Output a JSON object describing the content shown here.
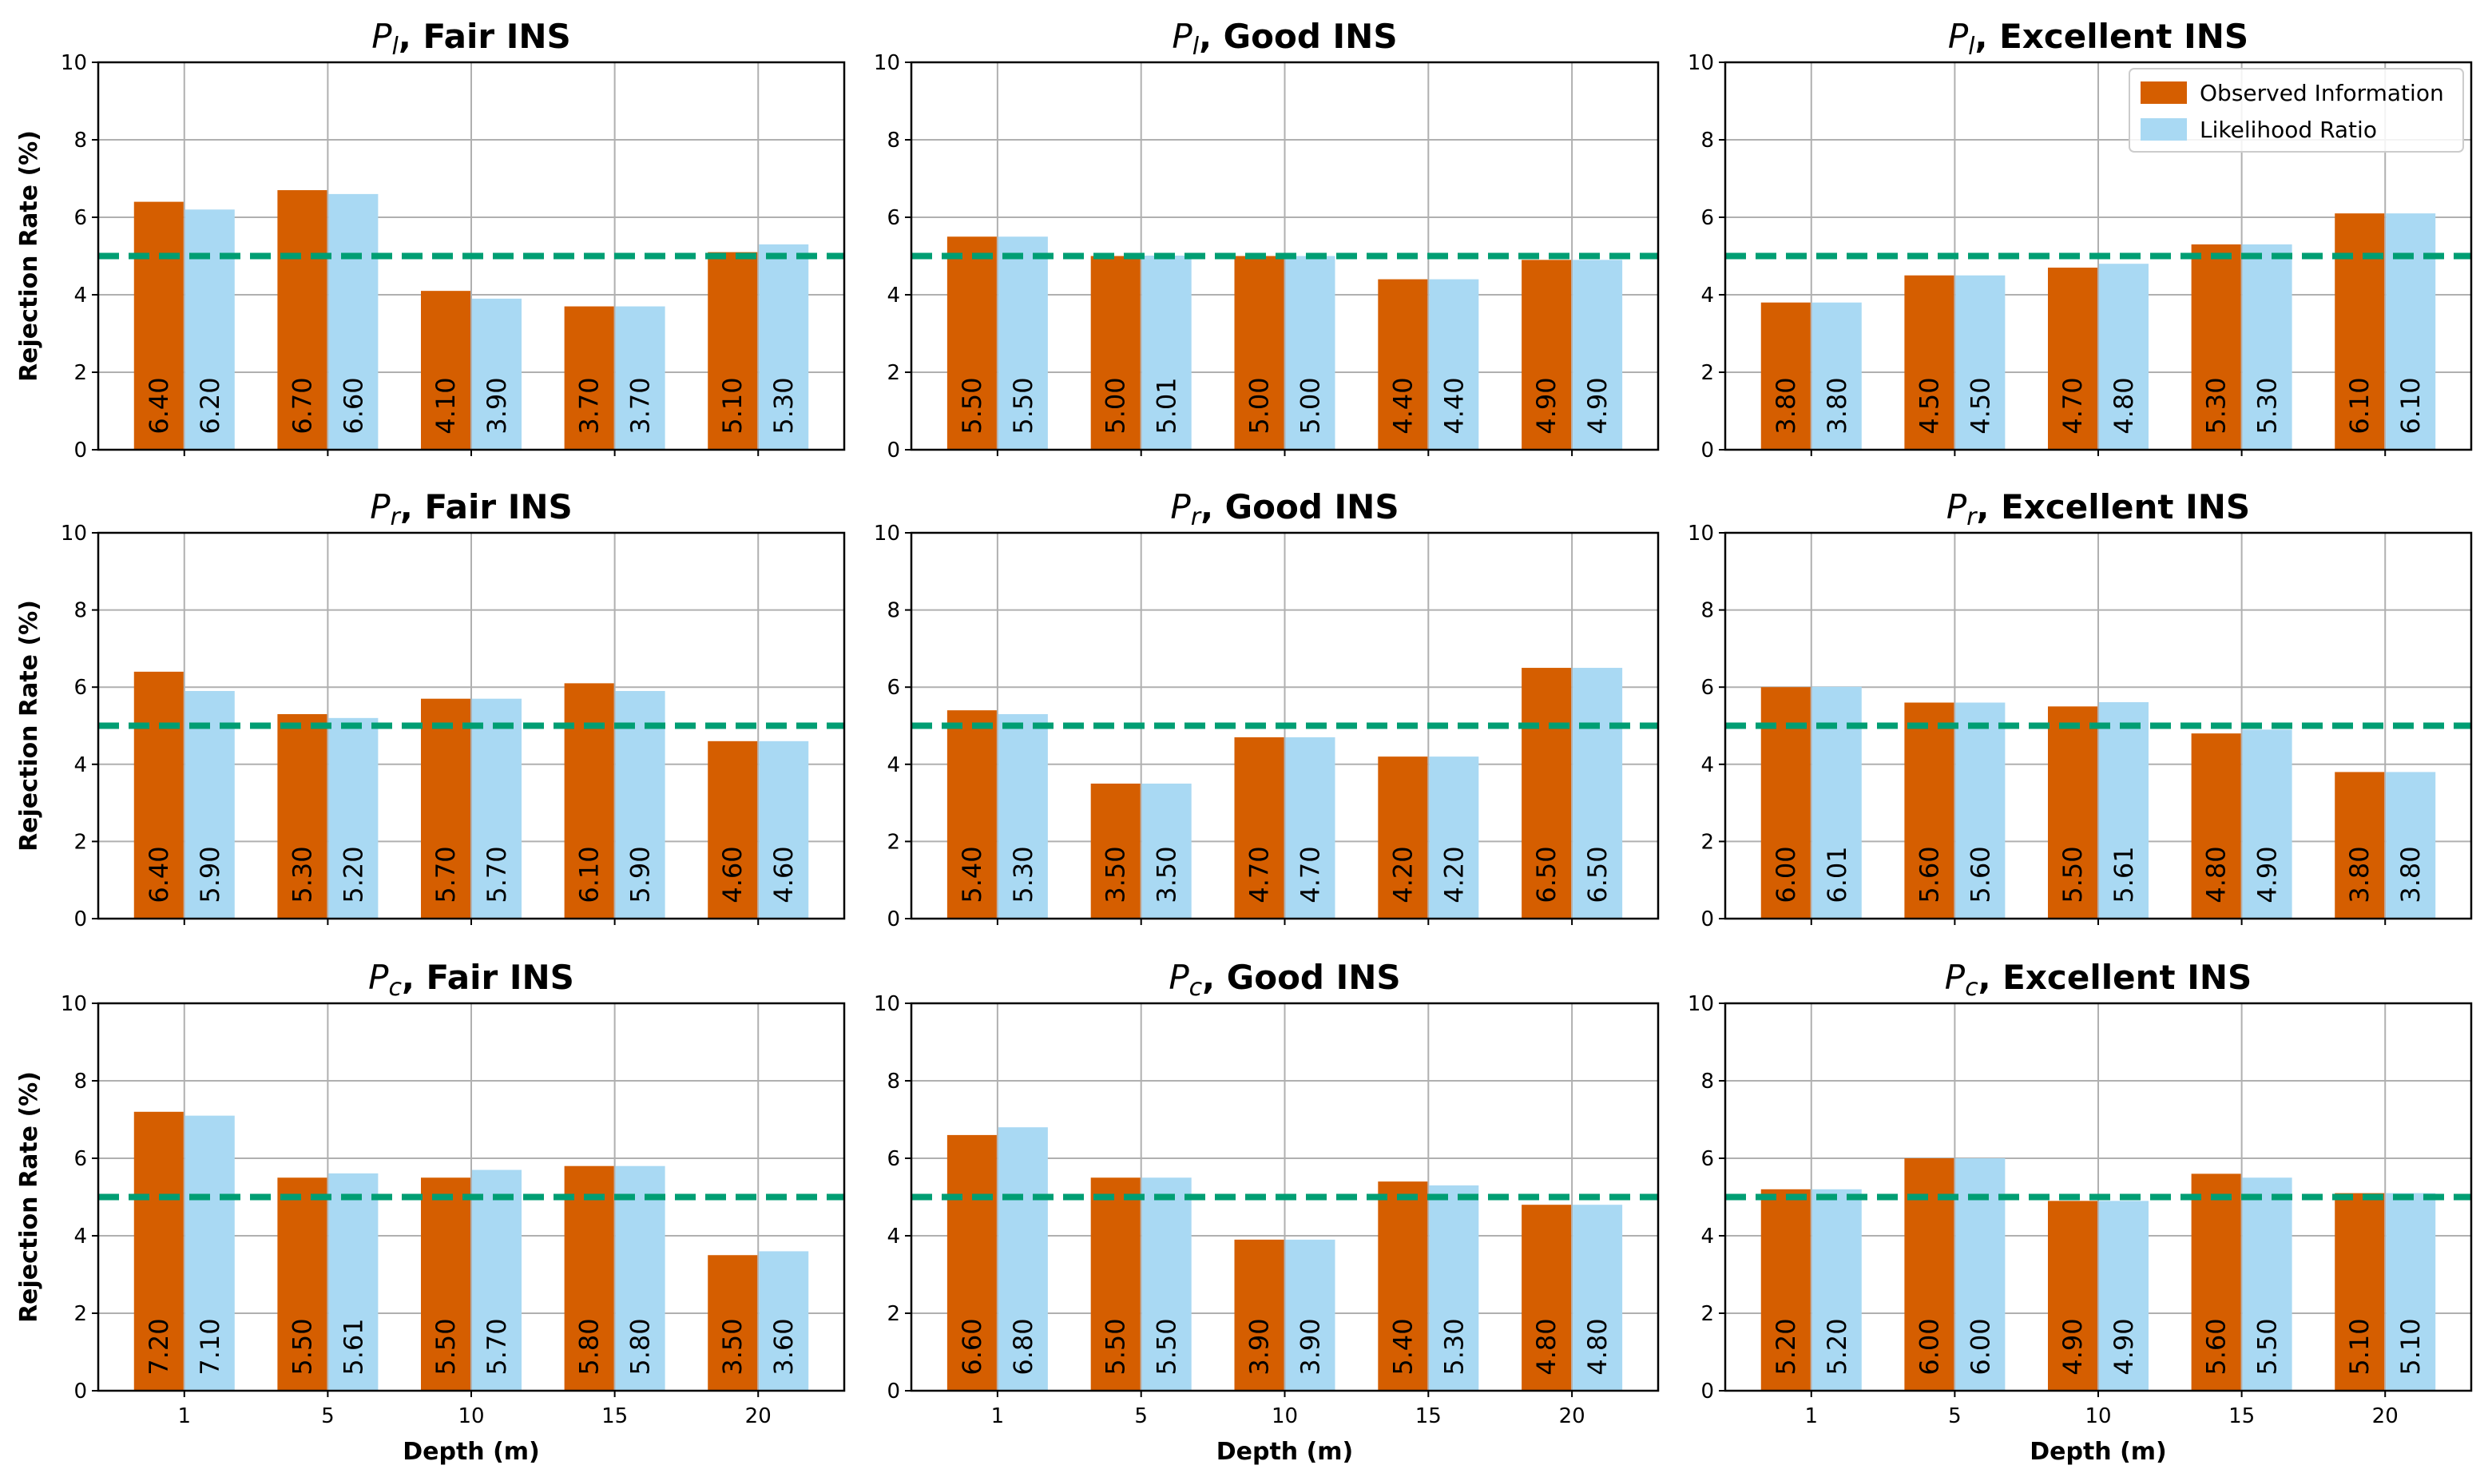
{
  "chart_data": {
    "type": "bar",
    "grid_layout": {
      "rows": 3,
      "cols": 3
    },
    "categories": [
      "1",
      "5",
      "10",
      "15",
      "20"
    ],
    "xlabel": "Depth (m)",
    "ylabel": "Rejection Rate (%)",
    "ylim": [
      0,
      10
    ],
    "yticks": [
      "0",
      "2",
      "4",
      "6",
      "8",
      "10"
    ],
    "reference_line": {
      "value": 5,
      "style": "dashed",
      "color": "#009E73"
    },
    "grid": true,
    "legend": {
      "placement": "top-right",
      "panel": 2,
      "entries": [
        "Observed Information",
        "Likelihood Ratio"
      ]
    },
    "colors": {
      "observed": "#D55E00",
      "likelihood": "#A9D9F3"
    },
    "panels": [
      {
        "title_var": "P",
        "title_sub": "l",
        "title_rest": ", Fair INS",
        "series": [
          {
            "name": "Observed Information",
            "values": [
              6.4,
              6.7,
              4.1,
              3.7,
              5.1
            ],
            "labels": [
              "6.40",
              "6.70",
              "4.10",
              "3.70",
              "5.10"
            ]
          },
          {
            "name": "Likelihood Ratio",
            "values": [
              6.2,
              6.6,
              3.9,
              3.7,
              5.3
            ],
            "labels": [
              "6.20",
              "6.60",
              "3.90",
              "3.70",
              "5.30"
            ]
          }
        ]
      },
      {
        "title_var": "P",
        "title_sub": "l",
        "title_rest": ", Good INS",
        "series": [
          {
            "name": "Observed Information",
            "values": [
              5.5,
              5.0,
              5.0,
              4.4,
              4.9
            ],
            "labels": [
              "5.50",
              "5.00",
              "5.00",
              "4.40",
              "4.90"
            ]
          },
          {
            "name": "Likelihood Ratio",
            "values": [
              5.5,
              5.01,
              5.0,
              4.4,
              4.9
            ],
            "labels": [
              "5.50",
              "5.01",
              "5.00",
              "4.40",
              "4.90"
            ]
          }
        ]
      },
      {
        "title_var": "P",
        "title_sub": "l",
        "title_rest": ", Excellent INS",
        "series": [
          {
            "name": "Observed Information",
            "values": [
              3.8,
              4.5,
              4.7,
              5.3,
              6.1
            ],
            "labels": [
              "3.80",
              "4.50",
              "4.70",
              "5.30",
              "6.10"
            ]
          },
          {
            "name": "Likelihood Ratio",
            "values": [
              3.8,
              4.5,
              4.8,
              5.3,
              6.1
            ],
            "labels": [
              "3.80",
              "4.50",
              "4.80",
              "5.30",
              "6.10"
            ]
          }
        ]
      },
      {
        "title_var": "P",
        "title_sub": "r",
        "title_rest": ", Fair INS",
        "series": [
          {
            "name": "Observed Information",
            "values": [
              6.4,
              5.3,
              5.7,
              6.1,
              4.6
            ],
            "labels": [
              "6.40",
              "5.30",
              "5.70",
              "6.10",
              "4.60"
            ]
          },
          {
            "name": "Likelihood Ratio",
            "values": [
              5.9,
              5.2,
              5.7,
              5.9,
              4.6
            ],
            "labels": [
              "5.90",
              "5.20",
              "5.70",
              "5.90",
              "4.60"
            ]
          }
        ]
      },
      {
        "title_var": "P",
        "title_sub": "r",
        "title_rest": ", Good INS",
        "series": [
          {
            "name": "Observed Information",
            "values": [
              5.4,
              3.5,
              4.7,
              4.2,
              6.5
            ],
            "labels": [
              "5.40",
              "3.50",
              "4.70",
              "4.20",
              "6.50"
            ]
          },
          {
            "name": "Likelihood Ratio",
            "values": [
              5.3,
              3.5,
              4.7,
              4.2,
              6.5
            ],
            "labels": [
              "5.30",
              "3.50",
              "4.70",
              "4.20",
              "6.50"
            ]
          }
        ]
      },
      {
        "title_var": "P",
        "title_sub": "r",
        "title_rest": ", Excellent INS",
        "series": [
          {
            "name": "Observed Information",
            "values": [
              6.0,
              5.6,
              5.5,
              4.8,
              3.8
            ],
            "labels": [
              "6.00",
              "5.60",
              "5.50",
              "4.80",
              "3.80"
            ]
          },
          {
            "name": "Likelihood Ratio",
            "values": [
              6.01,
              5.6,
              5.61,
              4.9,
              3.8
            ],
            "labels": [
              "6.01",
              "5.60",
              "5.61",
              "4.90",
              "3.80"
            ]
          }
        ]
      },
      {
        "title_var": "P",
        "title_sub": "c",
        "title_rest": ", Fair INS",
        "series": [
          {
            "name": "Observed Information",
            "values": [
              7.2,
              5.5,
              5.5,
              5.8,
              3.5
            ],
            "labels": [
              "7.20",
              "5.50",
              "5.50",
              "5.80",
              "3.50"
            ]
          },
          {
            "name": "Likelihood Ratio",
            "values": [
              7.1,
              5.61,
              5.7,
              5.8,
              3.6
            ],
            "labels": [
              "7.10",
              "5.61",
              "5.70",
              "5.80",
              "3.60"
            ]
          }
        ]
      },
      {
        "title_var": "P",
        "title_sub": "c",
        "title_rest": ", Good INS",
        "series": [
          {
            "name": "Observed Information",
            "values": [
              6.6,
              5.5,
              3.9,
              5.4,
              4.8
            ],
            "labels": [
              "6.60",
              "5.50",
              "3.90",
              "5.40",
              "4.80"
            ]
          },
          {
            "name": "Likelihood Ratio",
            "values": [
              6.8,
              5.5,
              3.9,
              5.3,
              4.8
            ],
            "labels": [
              "6.80",
              "5.50",
              "3.90",
              "5.30",
              "4.80"
            ]
          }
        ]
      },
      {
        "title_var": "P",
        "title_sub": "c",
        "title_rest": ", Excellent INS",
        "series": [
          {
            "name": "Observed Information",
            "values": [
              5.2,
              6.0,
              4.9,
              5.6,
              5.1
            ],
            "labels": [
              "5.20",
              "6.00",
              "4.90",
              "5.60",
              "5.10"
            ]
          },
          {
            "name": "Likelihood Ratio",
            "values": [
              5.2,
              6.0,
              4.9,
              5.5,
              5.1
            ],
            "labels": [
              "5.20",
              "6.00",
              "4.90",
              "5.50",
              "5.10"
            ]
          }
        ]
      }
    ]
  }
}
